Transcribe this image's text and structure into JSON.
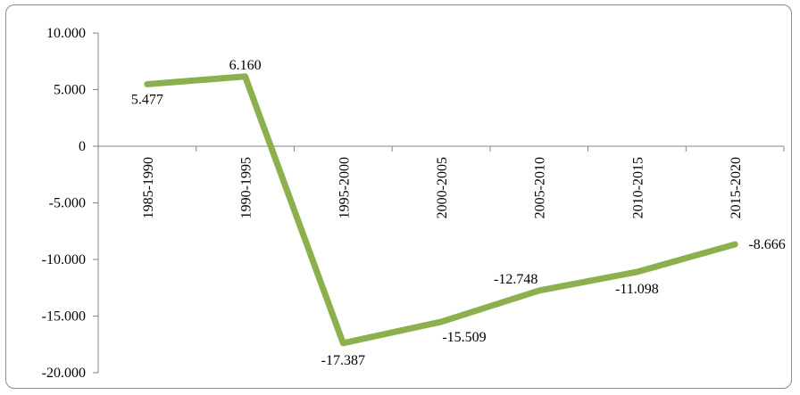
{
  "chart_data": {
    "type": "line",
    "categories": [
      "1985-1990",
      "1990-1995",
      "1995-2000",
      "2000-2005",
      "2005-2010",
      "2010-2015",
      "2015-2020"
    ],
    "series": [
      {
        "values": [
          5477,
          6160,
          -17387,
          -15509,
          -12748,
          -11098,
          -8666
        ]
      }
    ],
    "data_labels": [
      "5.477",
      "6.160",
      "-17.387",
      "-15.509",
      "-12.748",
      "-11.098",
      "-8.666"
    ],
    "y_ticks": [
      10000,
      5000,
      0,
      -5000,
      -10000,
      -15000,
      -20000
    ],
    "y_tick_labels": [
      "10.000",
      "5.000",
      "0",
      "-5.000",
      "-10.000",
      "-15.000",
      "-20.000"
    ],
    "ylim": [
      -20000,
      10000
    ],
    "line_color": "#8db04e",
    "grid": false,
    "legend": "none"
  }
}
